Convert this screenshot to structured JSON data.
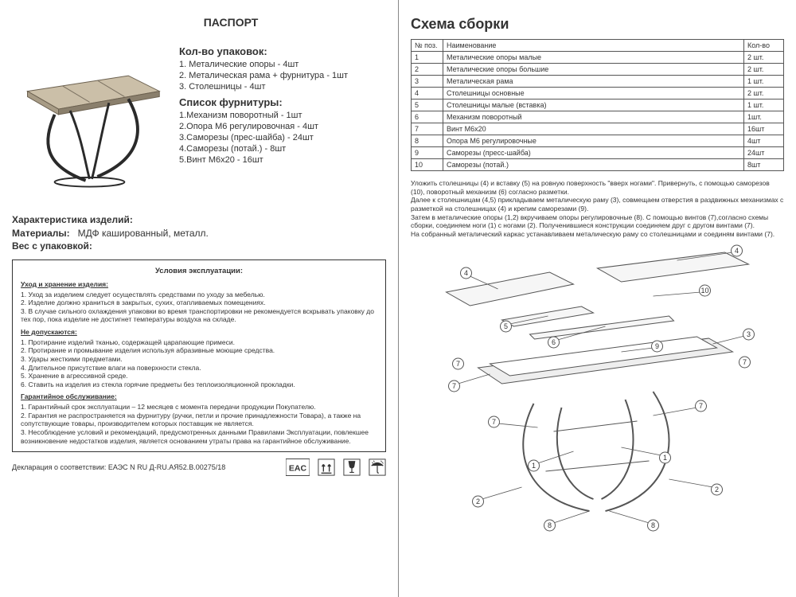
{
  "left": {
    "title": "ПАСПОРТ",
    "packaging_heading": "Кол-во упаковок:",
    "packaging": [
      "1. Металические опоры - 4шт",
      "2. Металическая рама + фурнитура - 1шт",
      "3. Столешницы - 4шт"
    ],
    "fittings_heading": "Список фурнитуры:",
    "fittings": [
      "1.Механизм поворотный - 1шт",
      "2.Опора М6 регулировочная - 4шт",
      "3.Саморезы (прес-шайба) - 24шт",
      "4.Саморезы (потай.) - 8шт",
      "5.Винт М6х20 - 16шт"
    ],
    "characteristics_heading": "Характеристика изделий:",
    "materials_label": "Материалы:",
    "materials_value": "МДФ кашированный, металл.",
    "weight_label": "Вес с упаковкой:",
    "weight_value": "",
    "conditions": {
      "title": "Условия эксплуатации:",
      "care_heading": "Уход и хранение изделия:",
      "care": [
        "1. Уход за изделием следует осуществлять средствами по уходу за мебелью.",
        "2. Изделие должно храниться в закрытых, сухих, отапливаемых помещениях.",
        "3. В случае сильного охлаждения упаковки во время транспортировки не рекомендуется вскрывать упаковку до тех пор, пока изделие не достигнет температуры воздуха на складе."
      ],
      "forbidden_heading": "Не допускаются:",
      "forbidden": [
        "1. Протирание изделий тканью, содержащей царапающие примеси.",
        "2. Протирание и промывание изделия используя абразивные моющие средства.",
        "3. Удары жесткими предметами.",
        "4. Длительное присутствие влаги на поверхности стекла.",
        "5. Хранение в агрессивной среде.",
        "6. Ставить на изделия из стекла горячие предметы без теплоизоляционной прокладки."
      ],
      "warranty_heading": "Гарантийное обслуживание:",
      "warranty": [
        "1. Гарантийный срок эксплуатации – 12 месяцев с момента передачи продукции Покупателю.",
        "2. Гарантия не распространяется на фурнитуру (ручки, петли и прочие принадлежности Товара), а также на сопутствующие товары, производителем которых поставщик не является.",
        "3. Несоблюдение условий и рекомендаций,  предусмотренных данными Правилами Эксплуатации, повлекшее возникновение недостатков изделия, является основанием утраты права на гарантийное обслуживание."
      ]
    },
    "declaration": "Декларация о соответствии: ЕАЭС N RU Д-RU.АЯ52.В.00275/18",
    "cert_marks": [
      "EAC",
      "up-arrows",
      "glass",
      "umbrella"
    ]
  },
  "right": {
    "title": "Схема сборки",
    "table_headers": [
      "№ поз.",
      "Наименование",
      "Кол-во"
    ],
    "parts": [
      {
        "n": "1",
        "name": "Металические опоры малые",
        "qty": "2 шт."
      },
      {
        "n": "2",
        "name": "Металические опоры большие",
        "qty": "2 шт."
      },
      {
        "n": "3",
        "name": "Металическая рама",
        "qty": "1 шт."
      },
      {
        "n": "4",
        "name": "Столешницы основные",
        "qty": "2 шт."
      },
      {
        "n": "5",
        "name": "Столешницы малые (вставка)",
        "qty": "1 шт."
      },
      {
        "n": "6",
        "name": "Механизм поворотный",
        "qty": "1шт."
      },
      {
        "n": "7",
        "name": "Винт М6х20",
        "qty": "16шт"
      },
      {
        "n": "8",
        "name": "Опора М6 регулировочные",
        "qty": "4шт"
      },
      {
        "n": "9",
        "name": "Саморезы (пресс-шайба)",
        "qty": "24шт"
      },
      {
        "n": "10",
        "name": "Саморезы (потай.)",
        "qty": "8шт"
      }
    ],
    "instructions": [
      "Уложить столешницы (4) и вставку (5) на ровную поверхность \"вверх ногами\". Привернуть, с помощью саморезов (10), поворотный механизм (6) согласно разметки.",
      "Далее к столешницам (4,5) прикладываем металическую раму (3), совмещаем отверстия в раздвижных механизмах с разметкой на столешницах (4) и крепим саморезами (9).",
      "Затем в металические опоры (1,2) вкручиваем опоры регулировочные (8). С помощью винтов (7),согласно схемы сборки, соединяем ноги (1) с ногами (2). Полученившиеся конструкции соединяем друг с другом винтами (7).",
      "На собранный металический каркас устанавливаем металическую раму со столешницами и соединям винтами (7)."
    ],
    "callouts": [
      "4",
      "4",
      "5",
      "10",
      "6",
      "9",
      "3",
      "7",
      "7",
      "7",
      "7",
      "1",
      "1",
      "2",
      "2",
      "8",
      "8",
      "7",
      "7"
    ],
    "colors": {
      "line": "#555555",
      "fill_light": "#f4f4f4",
      "fill_dark": "#dddddd",
      "text": "#333333"
    }
  }
}
